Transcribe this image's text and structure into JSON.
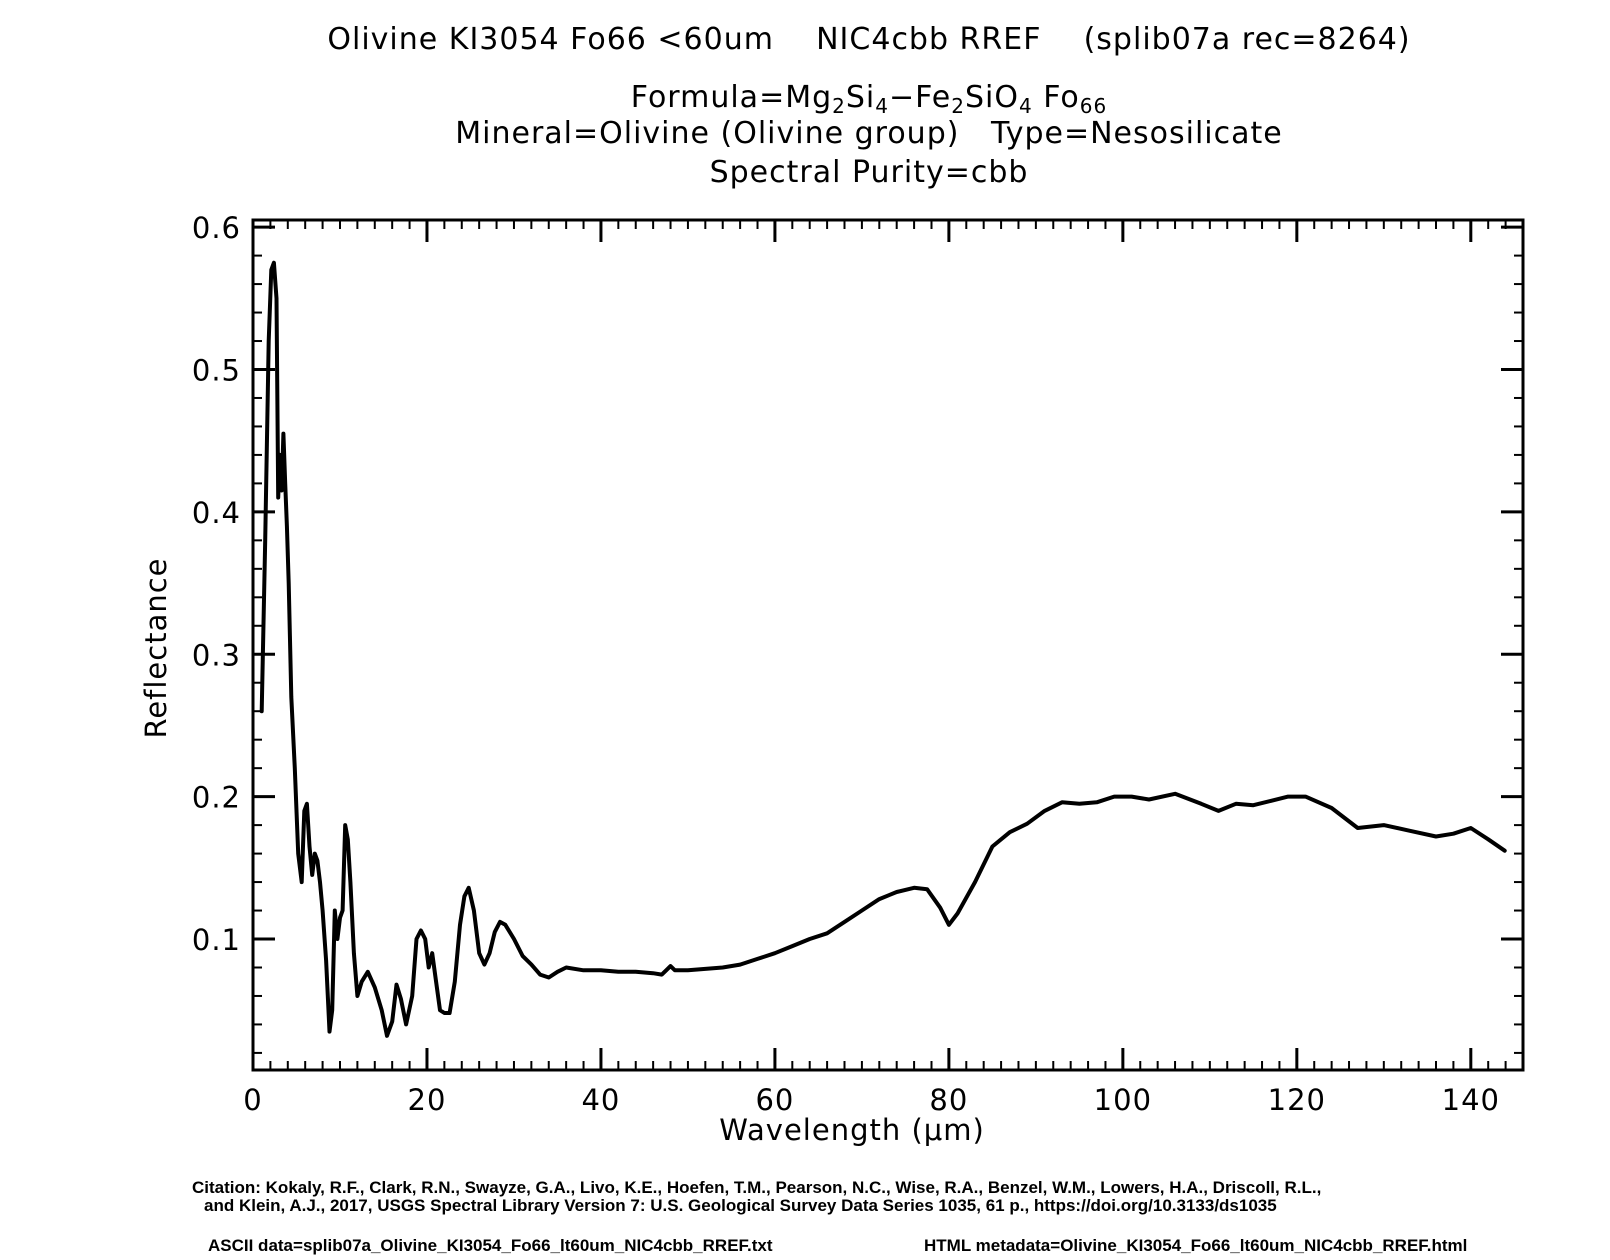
{
  "header": {
    "title": "Olivine KI3054 Fo66 <60um    NIC4cbb RREF    (splib07a rec=8264)",
    "formula_prefix": "Formula=Mg",
    "formula_sub1": "2",
    "formula_mid1": "Si",
    "formula_sub2": "4",
    "formula_mid2": "−Fe",
    "formula_sub3": "2",
    "formula_mid3": "SiO",
    "formula_sub4": "4",
    "formula_mid4": " Fo",
    "formula_sub5": "66",
    "mineral": "Mineral=Olivine (Olivine group)   Type=Nesosilicate",
    "purity": "Spectral Purity=cbb"
  },
  "footer": {
    "citation_line1": "Citation: Kokaly, R.F., Clark, R.N., Swayze, G.A., Livo, K.E., Hoefen, T.M., Pearson, N.C., Wise, R.A., Benzel, W.M., Lowers, H.A., Driscoll, R.L.,",
    "citation_line2": "and Klein, A.J., 2017, USGS Spectral Library Version 7: U.S. Geological Survey Data Series 1035, 61 p., https://doi.org/10.3133/ds1035",
    "ascii_data": "ASCII data=splib07a_Olivine_KI3054_Fo66_lt60um_NIC4cbb_RREF.txt",
    "html_metadata": "HTML metadata=Olivine_KI3054_Fo66_lt60um_NIC4cbb_RREF.html"
  },
  "chart_data": {
    "type": "line",
    "xlabel": "Wavelength (μm)",
    "ylabel": "Reflectance",
    "xlim": [
      0,
      146
    ],
    "ylim": [
      0.008,
      0.605
    ],
    "xticks": [
      0,
      20,
      40,
      60,
      80,
      100,
      120,
      140
    ],
    "yticks": [
      0.1,
      0.2,
      0.3,
      0.4,
      0.5,
      0.6
    ],
    "xtick_labels": [
      "0",
      "20",
      "40",
      "60",
      "80",
      "100",
      "120",
      "140"
    ],
    "ytick_labels": [
      "0.1",
      "0.2",
      "0.3",
      "0.4",
      "0.5",
      "0.6"
    ],
    "grid": false,
    "series": [
      {
        "name": "Olivine KI3054 Fo66 <60um NIC4cbb RREF",
        "color": "#000000",
        "x": [
          1.0,
          1.4,
          1.8,
          2.1,
          2.4,
          2.7,
          2.9,
          3.1,
          3.3,
          3.5,
          3.7,
          3.9,
          4.1,
          4.4,
          4.8,
          5.2,
          5.6,
          5.9,
          6.2,
          6.5,
          6.8,
          7.1,
          7.4,
          7.7,
          8.0,
          8.4,
          8.8,
          9.1,
          9.4,
          9.7,
          10.0,
          10.3,
          10.6,
          10.9,
          11.2,
          11.6,
          12.0,
          12.5,
          13.2,
          14.0,
          14.8,
          15.4,
          16.0,
          16.5,
          17.0,
          17.6,
          18.3,
          18.8,
          19.3,
          19.8,
          20.2,
          20.6,
          21.0,
          21.5,
          22.0,
          22.6,
          23.2,
          23.8,
          24.3,
          24.8,
          25.4,
          26.0,
          26.6,
          27.2,
          27.8,
          28.4,
          29.0,
          30.0,
          31.0,
          32.0,
          33.0,
          34.0,
          35.0,
          36.0,
          38.0,
          40.0,
          42.0,
          44.0,
          46.0,
          47.0,
          47.5,
          48.0,
          48.5,
          50.0,
          52.0,
          54.0,
          56.0,
          58.0,
          60.0,
          62.0,
          64.0,
          66.0,
          68.0,
          70.0,
          72.0,
          74.0,
          76.0,
          77.5,
          79.0,
          80.0,
          81.0,
          83.0,
          85.0,
          87.0,
          89.0,
          91.0,
          93.0,
          95.0,
          97.0,
          99.0,
          101.0,
          103.0,
          106.0,
          109.0,
          111.0,
          113.0,
          115.0,
          117.0,
          119.0,
          121.0,
          124.0,
          127.0,
          130.0,
          133.0,
          136.0,
          138.0,
          140.0,
          142.0,
          143.9
        ],
        "values": [
          0.26,
          0.38,
          0.52,
          0.57,
          0.575,
          0.55,
          0.41,
          0.44,
          0.415,
          0.455,
          0.42,
          0.39,
          0.35,
          0.27,
          0.22,
          0.16,
          0.14,
          0.19,
          0.195,
          0.165,
          0.145,
          0.16,
          0.155,
          0.14,
          0.12,
          0.085,
          0.035,
          0.05,
          0.12,
          0.1,
          0.115,
          0.12,
          0.18,
          0.17,
          0.14,
          0.09,
          0.06,
          0.07,
          0.077,
          0.066,
          0.05,
          0.032,
          0.042,
          0.068,
          0.058,
          0.04,
          0.06,
          0.1,
          0.106,
          0.1,
          0.08,
          0.09,
          0.072,
          0.05,
          0.048,
          0.048,
          0.07,
          0.11,
          0.13,
          0.136,
          0.12,
          0.09,
          0.082,
          0.09,
          0.105,
          0.112,
          0.11,
          0.1,
          0.088,
          0.082,
          0.075,
          0.073,
          0.077,
          0.08,
          0.078,
          0.078,
          0.077,
          0.077,
          0.076,
          0.075,
          0.078,
          0.081,
          0.078,
          0.078,
          0.079,
          0.08,
          0.082,
          0.086,
          0.09,
          0.095,
          0.1,
          0.104,
          0.112,
          0.12,
          0.128,
          0.133,
          0.136,
          0.135,
          0.122,
          0.11,
          0.118,
          0.14,
          0.165,
          0.175,
          0.181,
          0.19,
          0.196,
          0.195,
          0.196,
          0.2,
          0.2,
          0.198,
          0.202,
          0.195,
          0.19,
          0.195,
          0.194,
          0.197,
          0.2,
          0.2,
          0.192,
          0.178,
          0.18,
          0.176,
          0.172,
          0.174,
          0.178,
          0.17,
          0.162
        ]
      }
    ]
  }
}
